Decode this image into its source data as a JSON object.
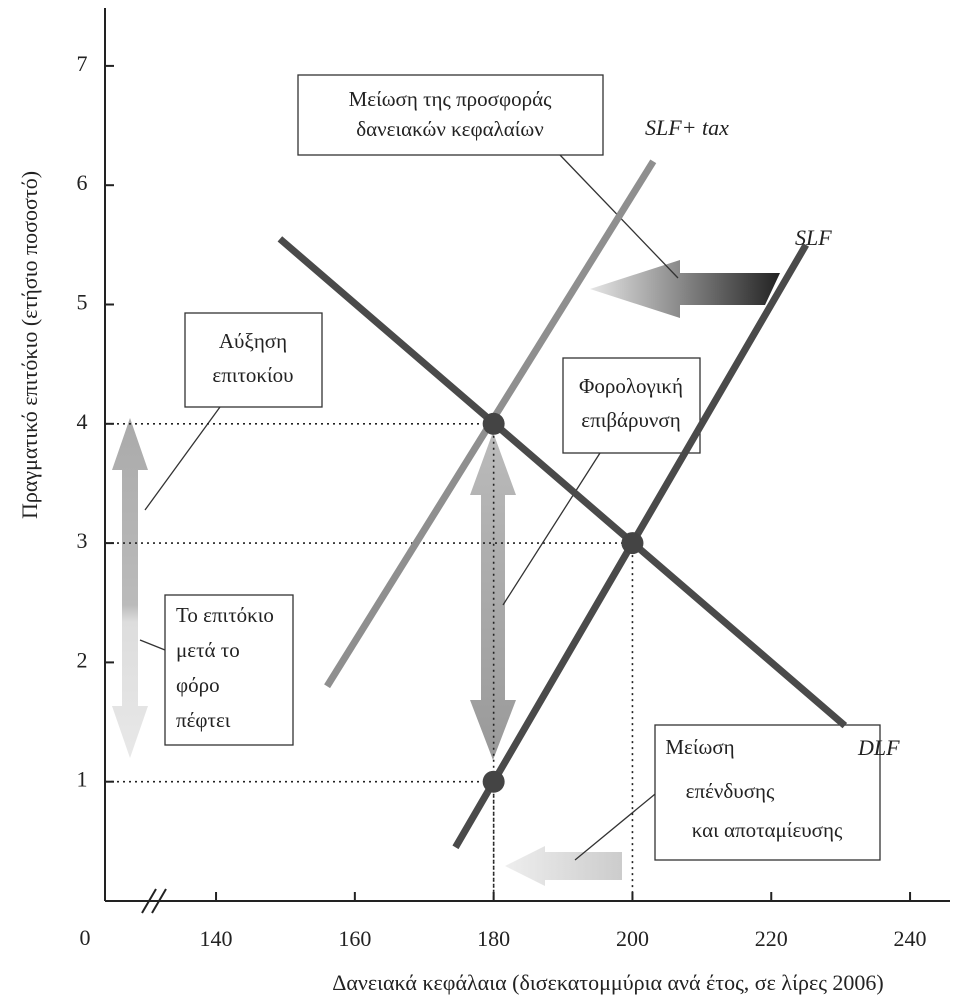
{
  "chart_data": {
    "type": "line",
    "xlabel": "Δανειακά κεφάλαια (δισεκατομμύρια ανά έτος, σε λίρες 2006)",
    "ylabel": "Πραγματικό επιτόκιο (ετήσιο ποσοστό)",
    "origin_label": "0",
    "xlim": [
      124,
      246
    ],
    "ylim": [
      0,
      7.5
    ],
    "xticks": [
      140,
      160,
      180,
      200,
      220,
      240
    ],
    "yticks": [
      1,
      2,
      3,
      4,
      5,
      6,
      7
    ],
    "series": [
      {
        "name": "SLF+ tax",
        "color": "#8f8f8f",
        "x": [
          156,
          203
        ],
        "values": [
          1.8,
          6.2
        ]
      },
      {
        "name": "SLF",
        "color": "#4a4a4a",
        "x": [
          174.5,
          225
        ],
        "values": [
          0.45,
          5.5
        ]
      },
      {
        "name": "DLF",
        "color": "#4a4a4a",
        "x": [
          149.2,
          230.6
        ],
        "values": [
          5.55,
          1.47
        ]
      }
    ],
    "points": [
      {
        "x": 180,
        "y": 4
      },
      {
        "x": 200,
        "y": 3
      },
      {
        "x": 180,
        "y": 1
      }
    ],
    "annotations": [
      {
        "lines": [
          "Μείωση της προσφοράς",
          "δανειακών κεφαλαίων"
        ]
      },
      {
        "lines": [
          "Αύξηση",
          "επιτοκίου"
        ]
      },
      {
        "lines": [
          "Φορολογική",
          "επιβάρυνση"
        ]
      },
      {
        "lines": [
          "Το επιτόκιο",
          "μετά το",
          "φόρο",
          "πέφτει"
        ]
      },
      {
        "lines": [
          "Μείωση",
          "επένδυσης",
          "και αποταμίευσης"
        ]
      }
    ]
  }
}
